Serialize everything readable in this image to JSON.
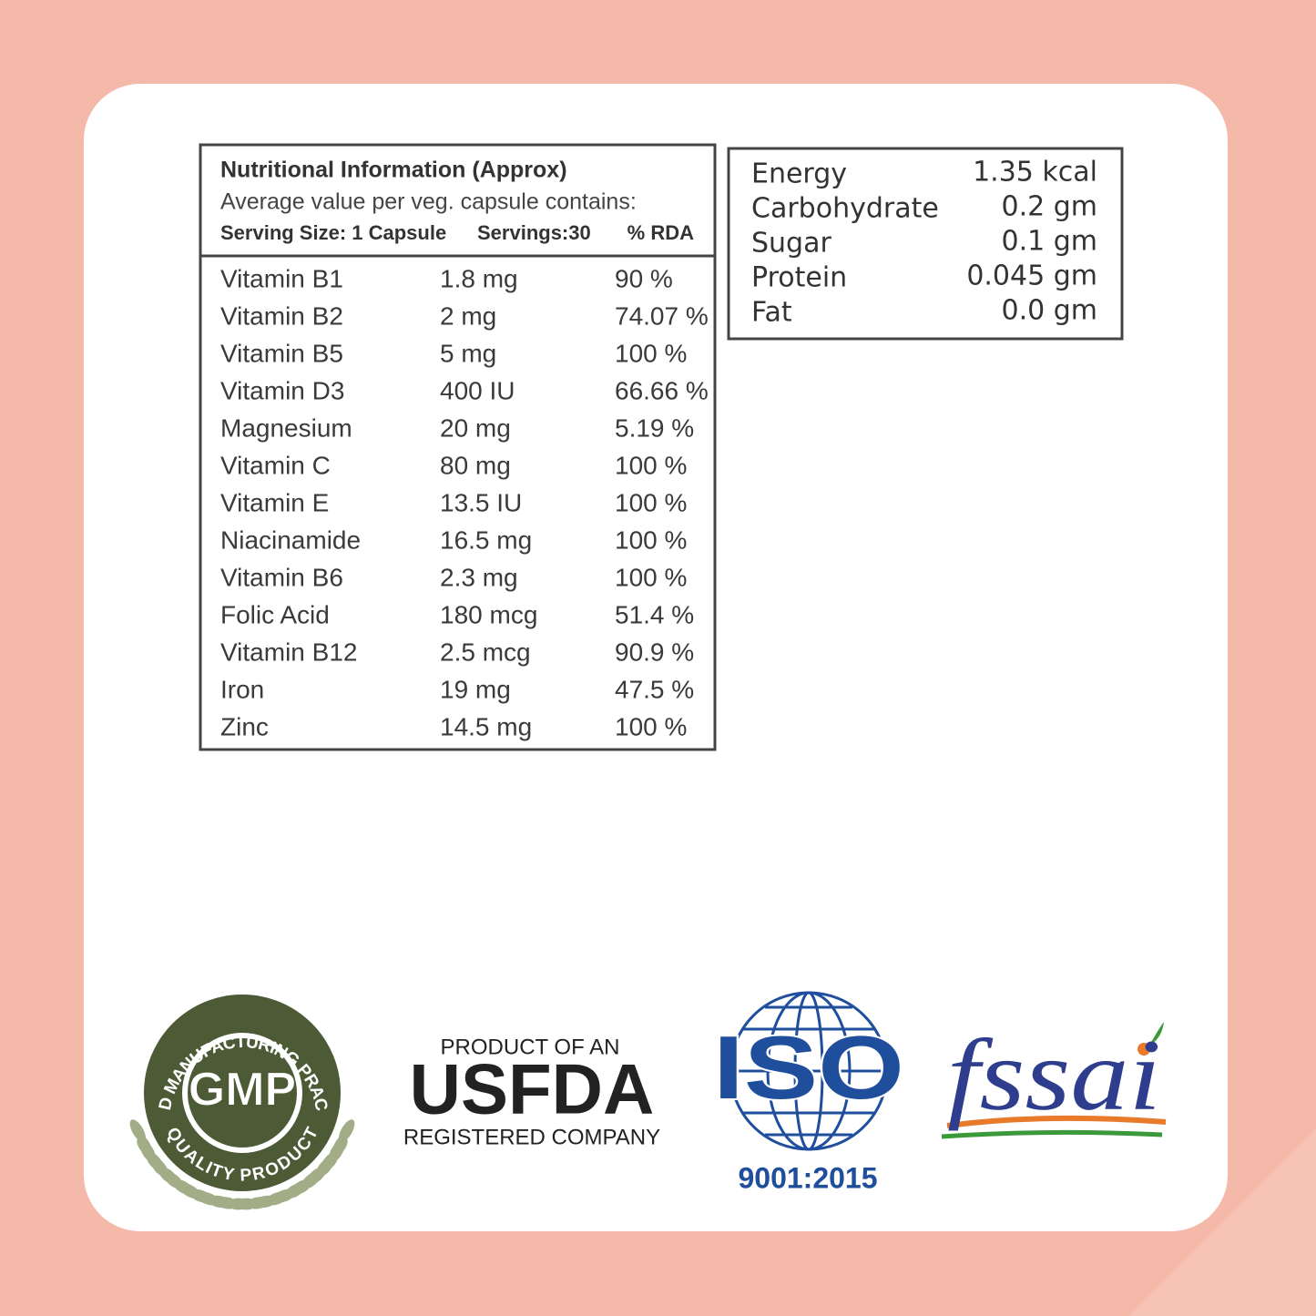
{
  "nutrition_table": {
    "title": "Nutritional Information (Approx)",
    "subtitle": "Average value per veg. capsule contains:",
    "serving_size": "Serving Size: 1 Capsule",
    "servings": "Servings:30",
    "rda_header": "% RDA",
    "rows": [
      [
        "Vitamin B1",
        "1.8 mg",
        "90 %"
      ],
      [
        "Vitamin B2",
        "2 mg",
        "74.07 %"
      ],
      [
        "Vitamin B5",
        "5 mg",
        "100 %"
      ],
      [
        "Vitamin D3",
        "400 IU",
        "66.66 %"
      ],
      [
        "Magnesium",
        "20 mg",
        "5.19 %"
      ],
      [
        "Vitamin C",
        "80 mg",
        "100 %"
      ],
      [
        "Vitamin E",
        "13.5 IU",
        "100 %"
      ],
      [
        "Niacinamide",
        "16.5 mg",
        "100 %"
      ],
      [
        "Vitamin B6",
        "2.3 mg",
        "100 %"
      ],
      [
        "Folic Acid",
        "180 mcg",
        "51.4 %"
      ],
      [
        "Vitamin B12",
        "2.5 mcg",
        "90.9 %"
      ],
      [
        "Iron",
        "19 mg",
        "47.5 %"
      ],
      [
        "Zinc",
        "14.5 mg",
        "100 %"
      ]
    ]
  },
  "energy_table": {
    "rows": [
      [
        "Energy",
        "1.35 kcal"
      ],
      [
        "Carbohydrate",
        "0.2 gm"
      ],
      [
        "Sugar",
        "0.1 gm"
      ],
      [
        "Protein",
        "0.045 gm"
      ],
      [
        "Fat",
        "0.0 gm"
      ]
    ]
  },
  "badges": {
    "gmp": {
      "top": "GOOD MANUFACTURING PRACTICE",
      "center": "GMP",
      "bottom": "QUALITY PRODUCT"
    },
    "usfda": {
      "top": "PRODUCT OF AN",
      "name": "USFDA",
      "bottom": "REGISTERED COMPANY"
    },
    "iso": {
      "name": "ISO",
      "standard": "9001:2015"
    },
    "fssai": {
      "name": "fssai"
    }
  }
}
